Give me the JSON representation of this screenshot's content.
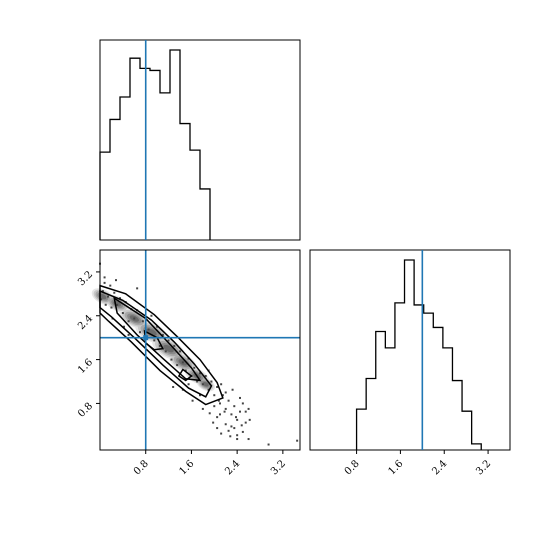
{
  "chart_data": {
    "type": "corner",
    "truths": {
      "x": 0.8,
      "y": 2.0
    },
    "truth_color": "#1f77b4",
    "axes": {
      "x": {
        "range": [
          0.0,
          3.5
        ],
        "ticks": [
          "0.8",
          "1.6",
          "2.4",
          "3.2"
        ]
      },
      "y": {
        "range": [
          -0.05,
          3.6
        ],
        "ticks": [
          "0.8",
          "1.6",
          "2.4",
          "3.2"
        ]
      }
    },
    "panels": [
      {
        "type": "histogram",
        "position": "top-left",
        "variable": "x",
        "bin_edges": [
          0.0,
          0.175,
          0.35,
          0.525,
          0.7,
          0.875,
          1.05,
          1.225,
          1.4,
          1.575,
          1.75,
          1.925
        ],
        "counts": [
          43,
          59,
          70,
          89,
          84,
          83,
          72,
          93,
          57,
          44,
          25
        ]
      },
      {
        "type": "histogram",
        "position": "bottom-right",
        "variable": "y",
        "bin_edges": [
          0.8,
          0.975,
          1.15,
          1.325,
          1.5,
          1.675,
          1.85,
          2.025,
          2.2,
          2.375,
          2.55,
          2.725,
          2.9,
          3.075
        ],
        "counts": [
          20,
          35,
          58,
          50,
          72,
          93,
          71,
          67,
          60,
          50,
          34,
          19,
          3
        ]
      },
      {
        "type": "2d-density",
        "position": "bottom-left",
        "x_variable": "x",
        "y_variable": "y",
        "description_points": [
          [
            0.02,
            2.7
          ],
          [
            0.05,
            2.85
          ],
          [
            0.08,
            3.0
          ],
          [
            0.1,
            2.6
          ],
          [
            0.14,
            2.75
          ],
          [
            0.18,
            2.95
          ],
          [
            0.2,
            2.55
          ],
          [
            0.25,
            2.82
          ],
          [
            0.3,
            2.6
          ],
          [
            0.35,
            2.72
          ],
          [
            0.4,
            2.45
          ],
          [
            0.45,
            2.65
          ],
          [
            0.5,
            2.3
          ],
          [
            0.55,
            2.52
          ],
          [
            0.6,
            2.35
          ],
          [
            0.65,
            2.5
          ],
          [
            0.7,
            2.1
          ],
          [
            0.75,
            2.3
          ],
          [
            0.85,
            2.15
          ],
          [
            0.9,
            2.4
          ],
          [
            0.95,
            1.95
          ],
          [
            1.0,
            2.2
          ],
          [
            1.05,
            1.85
          ],
          [
            1.1,
            2.05
          ],
          [
            1.15,
            1.75
          ],
          [
            1.2,
            1.95
          ],
          [
            1.25,
            1.6
          ],
          [
            1.3,
            1.85
          ],
          [
            1.35,
            1.5
          ],
          [
            1.4,
            1.75
          ],
          [
            1.45,
            1.55
          ],
          [
            1.5,
            1.4
          ],
          [
            1.55,
            1.62
          ],
          [
            1.6,
            1.3
          ],
          [
            1.65,
            1.45
          ],
          [
            1.7,
            1.2
          ],
          [
            1.75,
            1.35
          ],
          [
            1.8,
            1.15
          ],
          [
            1.85,
            1.3
          ],
          [
            1.9,
            1.05
          ],
          [
            1.95,
            1.2
          ],
          [
            2.0,
            0.95
          ],
          [
            2.05,
            1.1
          ],
          [
            2.1,
            0.8
          ],
          [
            2.15,
            0.95
          ],
          [
            2.2,
            0.7
          ],
          [
            2.25,
            0.85
          ],
          [
            2.3,
            0.6
          ],
          [
            2.35,
            0.75
          ],
          [
            2.4,
            0.5
          ],
          [
            2.45,
            0.65
          ],
          [
            2.05,
            0.55
          ],
          [
            2.2,
            0.42
          ],
          [
            2.35,
            0.35
          ],
          [
            2.5,
            0.28
          ],
          [
            2.6,
            0.15
          ],
          [
            2.28,
            0.2
          ],
          [
            2.45,
            0.9
          ],
          [
            2.55,
            0.45
          ],
          [
            2.95,
            0.05
          ],
          [
            3.45,
            0.12
          ],
          [
            0.0,
            3.35
          ],
          [
            0.08,
            3.1
          ],
          [
            0.28,
            3.05
          ],
          [
            1.75,
            0.95
          ],
          [
            1.9,
            1.4
          ],
          [
            2.12,
            1.15
          ],
          [
            1.62,
            0.85
          ],
          [
            2.32,
            1.05
          ],
          [
            0.5,
            2.05
          ],
          [
            0.42,
            2.2
          ],
          [
            1.28,
            1.1
          ],
          [
            1.45,
            1.05
          ],
          [
            0.65,
            2.9
          ],
          [
            0.22,
            2.35
          ],
          [
            2.05,
            0.35
          ],
          [
            2.18,
            0.65
          ],
          [
            2.4,
            0.22
          ],
          [
            2.62,
            0.5
          ],
          [
            1.8,
            0.7
          ],
          [
            2.08,
            0.85
          ],
          [
            2.5,
            0.8
          ],
          [
            2.2,
            1.0
          ],
          [
            1.98,
            0.45
          ],
          [
            2.38,
            0.55
          ],
          [
            1.55,
            1.15
          ],
          [
            2.25,
            0.3
          ],
          [
            2.55,
            0.65
          ],
          [
            2.1,
            0.6
          ],
          [
            2.3,
            0.38
          ],
          [
            1.92,
            0.62
          ],
          [
            2.48,
            0.4
          ],
          [
            2.12,
            0.25
          ],
          [
            2.6,
            0.7
          ],
          [
            2.0,
            0.75
          ],
          [
            2.4,
            0.15
          ]
        ]
      }
    ]
  }
}
